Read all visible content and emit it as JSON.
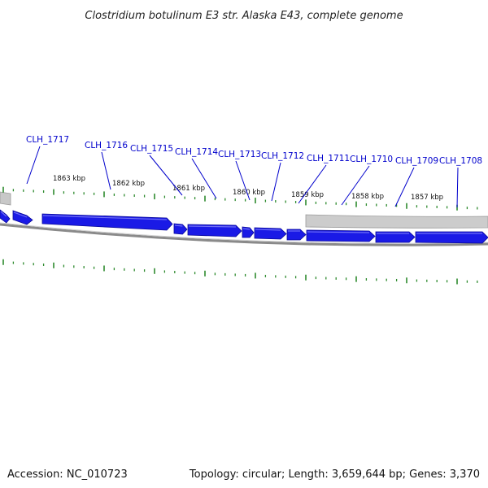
{
  "title": "Clostridium botulinum E3 str. Alaska E43, complete genome",
  "footer": {
    "accession": "Accession: NC_010723",
    "summary": "Topology: circular; Length: 3,659,644 bp; Genes: 3,370"
  },
  "colors": {
    "gene": "#1a1ae6",
    "gene_label": "#0000cc",
    "tick": "#2e8b2e",
    "backbone": "#888888",
    "backbone_light": "#c8c8c8"
  },
  "scale_labels": [
    "1863 kbp",
    "1862 kbp",
    "1861 kbp",
    "1860 kbp",
    "1859 kbp",
    "1858 kbp",
    "1857 kbp"
  ],
  "genes": [
    {
      "name": "CLH_1717"
    },
    {
      "name": "CLH_1716"
    },
    {
      "name": "CLH_1715"
    },
    {
      "name": "CLH_1714"
    },
    {
      "name": "CLH_1713"
    },
    {
      "name": "CLH_1712"
    },
    {
      "name": "CLH_1711"
    },
    {
      "name": "CLH_1710"
    },
    {
      "name": "CLH_1709"
    },
    {
      "name": "CLH_1708"
    }
  ]
}
